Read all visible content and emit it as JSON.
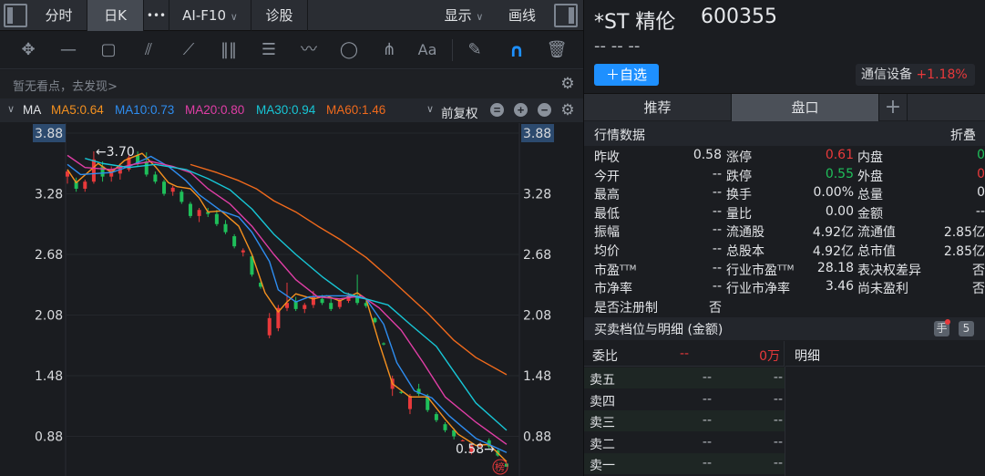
{
  "topbar": {
    "tabs": [
      {
        "label": "分时"
      },
      {
        "label": "日K"
      },
      {
        "label": "•••"
      },
      {
        "label": "AI-F10"
      },
      {
        "label": "诊股"
      }
    ],
    "display": "显示",
    "draw": "画线",
    "chevron": "∨"
  },
  "tools": [
    "move-icon",
    "line-icon",
    "rect-icon",
    "fan-icon",
    "segment-icon",
    "vlines-icon",
    "text-grid-icon",
    "wave-icon",
    "circle-icon",
    "fork-icon",
    "text-icon",
    "eraser-icon",
    "magnet-icon",
    "trash-icon"
  ],
  "tool_text": "Aa",
  "notice": "暂无看点，去发现>",
  "ma": {
    "label": "MA",
    "items": [
      {
        "text": "MA5:0.64",
        "color": "#f5911f"
      },
      {
        "text": "MA10:0.73",
        "color": "#2e8df0"
      },
      {
        "text": "MA20:0.80",
        "color": "#e03ea6"
      },
      {
        "text": "MA30:0.94",
        "color": "#17c6d6"
      },
      {
        "text": "MA60:1.46",
        "color": "#f06a1c"
      }
    ],
    "adjust": "前复权"
  },
  "colors": {
    "up": "#e8393b",
    "down": "#1fbf5a",
    "accent": "#1e90ff"
  },
  "chart_data": {
    "type": "candlestick",
    "yticks": [
      "3.88",
      "3.28",
      "2.68",
      "2.08",
      "1.48",
      "0.88"
    ],
    "ylim": [
      0.52,
      4.0
    ],
    "xlim": [
      0,
      100
    ],
    "max_label": "←3.70",
    "min_label": "0.58→",
    "badge": "榜",
    "candles": [
      [
        0,
        3.45,
        3.52,
        3.38,
        3.5
      ],
      [
        2,
        3.4,
        3.44,
        3.3,
        3.33
      ],
      [
        4,
        3.33,
        3.42,
        3.3,
        3.4
      ],
      [
        6,
        3.4,
        3.7,
        3.38,
        3.62
      ],
      [
        8,
        3.55,
        3.6,
        3.4,
        3.45
      ],
      [
        10,
        3.45,
        3.55,
        3.4,
        3.52
      ],
      [
        12,
        3.48,
        3.58,
        3.42,
        3.56
      ],
      [
        14,
        3.52,
        3.66,
        3.5,
        3.64
      ],
      [
        16,
        3.66,
        3.7,
        3.55,
        3.58
      ],
      [
        18,
        3.6,
        3.69,
        3.45,
        3.47
      ],
      [
        20,
        3.47,
        3.5,
        3.38,
        3.4
      ],
      [
        22,
        3.4,
        3.42,
        3.26,
        3.28
      ],
      [
        24,
        3.3,
        3.36,
        3.26,
        3.34
      ],
      [
        26,
        3.3,
        3.32,
        3.18,
        3.2
      ],
      [
        28,
        3.18,
        3.2,
        3.04,
        3.06
      ],
      [
        30,
        3.06,
        3.14,
        3.0,
        3.12
      ],
      [
        32,
        3.1,
        3.14,
        3.05,
        3.08
      ],
      [
        34,
        3.08,
        3.12,
        2.96,
        2.98
      ],
      [
        36,
        2.98,
        3.02,
        2.88,
        2.9
      ],
      [
        38,
        2.86,
        2.88,
        2.74,
        2.76
      ],
      [
        40,
        2.7,
        2.74,
        2.66,
        2.72
      ],
      [
        42,
        2.66,
        2.68,
        2.46,
        2.48
      ],
      [
        44,
        2.4,
        2.42,
        2.34,
        2.36
      ],
      [
        46,
        1.88,
        2.1,
        1.85,
        2.05
      ],
      [
        48,
        1.95,
        2.18,
        1.92,
        2.15
      ],
      [
        50,
        2.15,
        2.4,
        2.12,
        2.2
      ],
      [
        52,
        2.22,
        2.26,
        2.12,
        2.14
      ],
      [
        54,
        2.14,
        2.2,
        2.1,
        2.18
      ],
      [
        56,
        2.18,
        2.32,
        2.15,
        2.26
      ],
      [
        58,
        2.24,
        2.28,
        2.18,
        2.2
      ],
      [
        60,
        2.2,
        2.24,
        2.12,
        2.14
      ],
      [
        62,
        2.16,
        2.24,
        2.14,
        2.22
      ],
      [
        64,
        2.22,
        2.3,
        2.2,
        2.28
      ],
      [
        66,
        2.26,
        2.48,
        2.18,
        2.2
      ],
      [
        68,
        2.2,
        2.22,
        2.15,
        2.17
      ],
      [
        70,
        2.05,
        2.06,
        2.0,
        2.01
      ],
      [
        72,
        1.8,
        1.81,
        1.78,
        1.79
      ],
      [
        74,
        1.35,
        1.48,
        1.28,
        1.45
      ],
      [
        76,
        1.32,
        1.34,
        1.3,
        1.31
      ],
      [
        78,
        1.15,
        1.3,
        1.1,
        1.28
      ],
      [
        80,
        1.35,
        1.4,
        1.28,
        1.3
      ],
      [
        82,
        1.28,
        1.3,
        1.12,
        1.14
      ],
      [
        84,
        1.1,
        1.12,
        1.02,
        1.04
      ],
      [
        86,
        1.0,
        1.02,
        0.92,
        0.94
      ],
      [
        88,
        0.94,
        0.96,
        0.85,
        0.88
      ],
      [
        90,
        0.84,
        0.85,
        0.83,
        0.84
      ],
      [
        92,
        0.72,
        0.8,
        0.7,
        0.79
      ],
      [
        94,
        0.78,
        0.82,
        0.76,
        0.8
      ],
      [
        96,
        0.84,
        0.86,
        0.76,
        0.78
      ],
      [
        98,
        0.74,
        0.75,
        0.68,
        0.69
      ],
      [
        100,
        0.61,
        0.62,
        0.58,
        0.58
      ]
    ],
    "series": [
      {
        "name": "MA5",
        "color": "#f5911f",
        "points": [
          [
            0,
            3.52
          ],
          [
            2,
            3.39
          ],
          [
            7,
            3.58
          ],
          [
            10,
            3.49
          ],
          [
            13,
            3.61
          ],
          [
            17,
            3.68
          ],
          [
            20,
            3.55
          ],
          [
            23,
            3.39
          ],
          [
            25,
            3.35
          ],
          [
            28,
            3.33
          ],
          [
            30,
            3.24
          ],
          [
            32,
            3.1
          ],
          [
            35,
            3.11
          ],
          [
            39,
            2.96
          ],
          [
            42,
            2.68
          ],
          [
            45,
            2.3
          ],
          [
            48,
            2.11
          ],
          [
            50,
            2.21
          ],
          [
            52,
            2.29
          ],
          [
            56,
            2.24
          ],
          [
            59,
            2.27
          ],
          [
            62,
            2.22
          ],
          [
            66,
            2.3
          ],
          [
            68,
            2.24
          ],
          [
            71,
            1.8
          ],
          [
            74,
            1.4
          ],
          [
            78,
            1.27
          ],
          [
            82,
            1.27
          ],
          [
            86,
            1.05
          ],
          [
            89,
            0.9
          ],
          [
            93,
            0.79
          ],
          [
            96,
            0.8
          ],
          [
            100,
            0.63
          ]
        ]
      },
      {
        "name": "MA10",
        "color": "#2e8df0",
        "points": [
          [
            0,
            3.57
          ],
          [
            3,
            3.47
          ],
          [
            10,
            3.49
          ],
          [
            14,
            3.55
          ],
          [
            19,
            3.65
          ],
          [
            23,
            3.55
          ],
          [
            27,
            3.41
          ],
          [
            30,
            3.27
          ],
          [
            35,
            3.11
          ],
          [
            39,
            3.05
          ],
          [
            42,
            2.9
          ],
          [
            46,
            2.61
          ],
          [
            48,
            2.33
          ],
          [
            52,
            2.21
          ],
          [
            55,
            2.26
          ],
          [
            59,
            2.27
          ],
          [
            64,
            2.27
          ],
          [
            68,
            2.24
          ],
          [
            72,
            1.99
          ],
          [
            75,
            1.61
          ],
          [
            79,
            1.33
          ],
          [
            83,
            1.26
          ],
          [
            87,
            1.08
          ],
          [
            93,
            0.86
          ],
          [
            100,
            0.72
          ]
        ]
      },
      {
        "name": "MA20",
        "color": "#e03ea6",
        "points": [
          [
            0,
            3.66
          ],
          [
            4,
            3.54
          ],
          [
            10,
            3.52
          ],
          [
            15,
            3.57
          ],
          [
            19,
            3.6
          ],
          [
            24,
            3.55
          ],
          [
            28,
            3.49
          ],
          [
            32,
            3.33
          ],
          [
            37,
            3.18
          ],
          [
            42,
            2.96
          ],
          [
            47,
            2.68
          ],
          [
            52,
            2.43
          ],
          [
            57,
            2.26
          ],
          [
            62,
            2.24
          ],
          [
            67,
            2.27
          ],
          [
            71,
            2.15
          ],
          [
            76,
            1.93
          ],
          [
            81,
            1.61
          ],
          [
            86,
            1.27
          ],
          [
            93,
            1.02
          ],
          [
            100,
            0.8
          ]
        ]
      },
      {
        "name": "MA30",
        "color": "#17c6d6",
        "points": [
          [
            4,
            3.63
          ],
          [
            8,
            3.58
          ],
          [
            14,
            3.54
          ],
          [
            20,
            3.57
          ],
          [
            27,
            3.52
          ],
          [
            32,
            3.43
          ],
          [
            37,
            3.32
          ],
          [
            42,
            3.13
          ],
          [
            47,
            2.88
          ],
          [
            52,
            2.68
          ],
          [
            58,
            2.46
          ],
          [
            63,
            2.3
          ],
          [
            68,
            2.24
          ],
          [
            73,
            2.18
          ],
          [
            78,
            1.99
          ],
          [
            84,
            1.77
          ],
          [
            88,
            1.52
          ],
          [
            93,
            1.21
          ],
          [
            100,
            0.94
          ]
        ]
      },
      {
        "name": "MA60",
        "color": "#f06a1c",
        "points": [
          [
            28,
            3.57
          ],
          [
            34,
            3.49
          ],
          [
            39,
            3.41
          ],
          [
            43,
            3.33
          ],
          [
            47,
            3.21
          ],
          [
            52,
            3.1
          ],
          [
            57,
            2.96
          ],
          [
            62,
            2.83
          ],
          [
            68,
            2.65
          ],
          [
            73,
            2.46
          ],
          [
            77,
            2.3
          ],
          [
            82,
            2.1
          ],
          [
            88,
            1.83
          ],
          [
            93,
            1.66
          ],
          [
            100,
            1.49
          ]
        ]
      }
    ]
  },
  "stock": {
    "name": "*ST 精伦",
    "code": "600355",
    "price_line": "-- -- --",
    "add_watch": "＋自选",
    "sector": "通信设备",
    "sector_change": "+1.18%"
  },
  "right_tabs": [
    {
      "label": "推荐"
    },
    {
      "label": "盘口"
    },
    {
      "label": "+"
    }
  ],
  "quote": {
    "title": "行情数据",
    "collapse": "折叠",
    "rows": [
      [
        {
          "l": "昨收",
          "v": "0.58",
          "c": ""
        },
        {
          "l": "涨停",
          "v": "0.61",
          "c": "red"
        },
        {
          "l": "内盘",
          "v": "0",
          "c": "green"
        }
      ],
      [
        {
          "l": "今开",
          "v": "--",
          "c": ""
        },
        {
          "l": "跌停",
          "v": "0.55",
          "c": "green"
        },
        {
          "l": "外盘",
          "v": "0",
          "c": "red"
        }
      ],
      [
        {
          "l": "最高",
          "v": "--",
          "c": ""
        },
        {
          "l": "换手",
          "v": "0.00%",
          "c": ""
        },
        {
          "l": "总量",
          "v": "0",
          "c": ""
        }
      ],
      [
        {
          "l": "最低",
          "v": "--",
          "c": ""
        },
        {
          "l": "量比",
          "v": "0.00",
          "c": ""
        },
        {
          "l": "金额",
          "v": "--",
          "c": ""
        }
      ],
      [
        {
          "l": "振幅",
          "v": "--",
          "c": ""
        },
        {
          "l": "流通股",
          "v": "4.92亿",
          "c": ""
        },
        {
          "l": "流通值",
          "v": "2.85亿",
          "c": ""
        }
      ],
      [
        {
          "l": "均价",
          "v": "--",
          "c": ""
        },
        {
          "l": "总股本",
          "v": "4.92亿",
          "c": ""
        },
        {
          "l": "总市值",
          "v": "2.85亿",
          "c": ""
        }
      ],
      [
        {
          "l": "市盈ᵀᵀᴹ",
          "v": "--",
          "c": ""
        },
        {
          "l": "行业市盈ᵀᵀᴹ",
          "v": "28.18",
          "c": ""
        },
        {
          "l": "表决权差异",
          "v": "否",
          "c": ""
        }
      ],
      [
        {
          "l": "市净率",
          "v": "--",
          "c": ""
        },
        {
          "l": "行业市净率",
          "v": "3.46",
          "c": ""
        },
        {
          "l": "尚未盈利",
          "v": "否",
          "c": ""
        }
      ],
      [
        {
          "l": "是否注册制",
          "v": "否",
          "c": ""
        }
      ]
    ]
  },
  "orderbook": {
    "title": "买卖档位与明细 (金额)",
    "hand_btn": "手",
    "level_btn": "5",
    "ratio_label": "委比",
    "ratio_value": "--",
    "ratio_amount": "0万",
    "detail": "明细",
    "sells": [
      {
        "label": "卖五",
        "price": "--",
        "amount": "--"
      },
      {
        "label": "卖四",
        "price": "--",
        "amount": "--"
      },
      {
        "label": "卖三",
        "price": "--",
        "amount": "--"
      },
      {
        "label": "卖二",
        "price": "--",
        "amount": "--"
      },
      {
        "label": "卖一",
        "price": "--",
        "amount": "--"
      }
    ]
  }
}
